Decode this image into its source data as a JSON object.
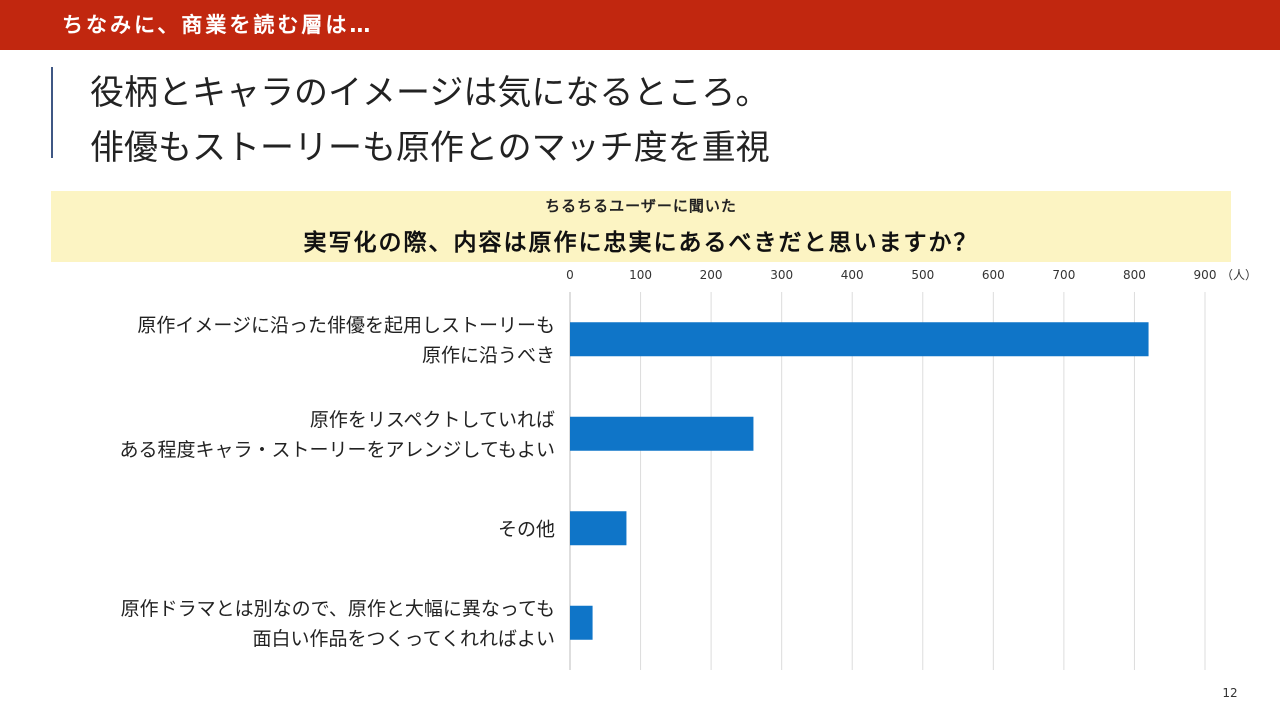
{
  "banner": {
    "title": "ちなみに、商業を読む層は…"
  },
  "headline": {
    "line1": "役柄とキャラのイメージは気になるところ。",
    "line2": "俳優もストーリーも原作とのマッチ度を重視"
  },
  "question": {
    "sub": "ちるちるユーザーに聞いた",
    "main": "実写化の際、内容は原作に忠実にあるべきだと思いますか？"
  },
  "colors": {
    "banner": "#c1270f",
    "bar": "#0f75c8",
    "question_bg": "#fcf4c3",
    "accent": "#3f5784"
  },
  "chart_data": {
    "type": "bar",
    "orientation": "horizontal",
    "categories": [
      [
        "原作イメージに沿った俳優を起用しストーリーも",
        "原作に沿うべき"
      ],
      [
        "原作をリスペクトしていれば",
        "ある程度キャラ・ストーリーをアレンジしてもよい"
      ],
      [
        "その他"
      ],
      [
        "原作ドラマとは別なので、原作と大幅に異なっても",
        "面白い作品をつくってくれればよい"
      ]
    ],
    "values": [
      820,
      260,
      80,
      32
    ],
    "xlim": [
      0,
      900
    ],
    "ticks": [
      "0",
      "100",
      "200",
      "300",
      "400",
      "500",
      "600",
      "700",
      "800",
      "900"
    ],
    "unit": "（人）",
    "axis_position": "top",
    "grid": true
  },
  "page_number": "12"
}
